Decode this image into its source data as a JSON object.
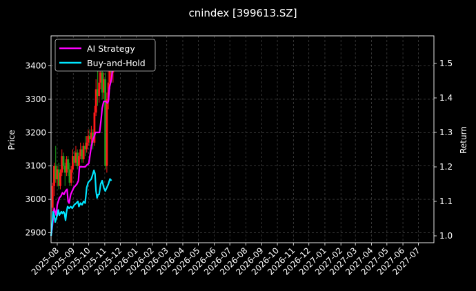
{
  "chart_data": {
    "type": "line",
    "title": "cnindex [399613.SZ]",
    "ylabel_left": "Price",
    "ylabel_right": "Return",
    "grid": true,
    "legend_position": "top-left",
    "background_color": "#000000",
    "x_tick_labels": [
      "2025-08",
      "2025-09",
      "2025-10",
      "2025-11",
      "2025-12",
      "2026-01",
      "2026-02",
      "2026-03",
      "2026-04",
      "2026-05",
      "2026-06",
      "2026-07",
      "2026-08",
      "2026-09",
      "2026-10",
      "2026-11",
      "2026-12",
      "2027-01",
      "2027-02",
      "2027-03",
      "2027-04",
      "2027-05",
      "2027-06",
      "2027-07"
    ],
    "x_range": [
      "2025-07-20",
      "2027-07-31"
    ],
    "left_axis": {
      "ylim": [
        2870,
        3490
      ],
      "ticks": [
        2900,
        3000,
        3100,
        3200,
        3300,
        3400
      ]
    },
    "right_axis": {
      "ylim": [
        0.98,
        1.58
      ],
      "ticks": [
        1.0,
        1.1,
        1.2,
        1.3,
        1.4,
        1.5
      ]
    },
    "series": [
      {
        "name": "AI Strategy",
        "axis": "right",
        "color": "#ff00ff",
        "points": [
          [
            "2025-07-20",
            1.0
          ],
          [
            "2025-07-22",
            1.02
          ],
          [
            "2025-07-24",
            1.05
          ],
          [
            "2025-07-26",
            1.08
          ],
          [
            "2025-07-28",
            1.07
          ],
          [
            "2025-07-30",
            1.06
          ],
          [
            "2025-08-01",
            1.09
          ],
          [
            "2025-08-03",
            1.1
          ],
          [
            "2025-08-05",
            1.11
          ],
          [
            "2025-08-08",
            1.115
          ],
          [
            "2025-08-11",
            1.125
          ],
          [
            "2025-08-14",
            1.12
          ],
          [
            "2025-08-17",
            1.13
          ],
          [
            "2025-08-20",
            1.135
          ],
          [
            "2025-08-22",
            1.1
          ],
          [
            "2025-08-24",
            1.095
          ],
          [
            "2025-08-27",
            1.12
          ],
          [
            "2025-08-30",
            1.13
          ],
          [
            "2025-09-02",
            1.14
          ],
          [
            "2025-09-05",
            1.145
          ],
          [
            "2025-09-08",
            1.15
          ],
          [
            "2025-09-11",
            1.16
          ],
          [
            "2025-09-13",
            1.2
          ],
          [
            "2025-09-16",
            1.2
          ],
          [
            "2025-09-20",
            1.2
          ],
          [
            "2025-09-24",
            1.2
          ],
          [
            "2025-09-27",
            1.205
          ],
          [
            "2025-10-01",
            1.21
          ],
          [
            "2025-10-03",
            1.23
          ],
          [
            "2025-10-06",
            1.26
          ],
          [
            "2025-10-09",
            1.28
          ],
          [
            "2025-10-12",
            1.29
          ],
          [
            "2025-10-14",
            1.3
          ],
          [
            "2025-10-18",
            1.3
          ],
          [
            "2025-10-22",
            1.3
          ],
          [
            "2025-10-25",
            1.34
          ],
          [
            "2025-10-27",
            1.37
          ],
          [
            "2025-10-30",
            1.39
          ],
          [
            "2025-11-03",
            1.39
          ],
          [
            "2025-11-06",
            1.385
          ],
          [
            "2025-11-08",
            1.39
          ],
          [
            "2025-11-10",
            1.43
          ],
          [
            "2025-11-14",
            1.455
          ],
          [
            "2025-11-17",
            1.5
          ],
          [
            "2025-11-20",
            1.53
          ],
          [
            "2025-11-23",
            1.56
          ]
        ]
      },
      {
        "name": "Buy-and-Hold",
        "axis": "right",
        "color": "#00e5ff",
        "points": [
          [
            "2025-07-20",
            1.0
          ],
          [
            "2025-07-22",
            1.03
          ],
          [
            "2025-07-24",
            1.07
          ],
          [
            "2025-07-26",
            1.06
          ],
          [
            "2025-07-28",
            1.04
          ],
          [
            "2025-07-30",
            1.05
          ],
          [
            "2025-08-01",
            1.06
          ],
          [
            "2025-08-03",
            1.075
          ],
          [
            "2025-08-05",
            1.06
          ],
          [
            "2025-08-07",
            1.065
          ],
          [
            "2025-08-09",
            1.07
          ],
          [
            "2025-08-11",
            1.065
          ],
          [
            "2025-08-13",
            1.07
          ],
          [
            "2025-08-15",
            1.065
          ],
          [
            "2025-08-17",
            1.045
          ],
          [
            "2025-08-19",
            1.07
          ],
          [
            "2025-08-21",
            1.085
          ],
          [
            "2025-08-24",
            1.08
          ],
          [
            "2025-08-27",
            1.085
          ],
          [
            "2025-08-30",
            1.08
          ],
          [
            "2025-09-03",
            1.09
          ],
          [
            "2025-09-07",
            1.095
          ],
          [
            "2025-09-10",
            1.1
          ],
          [
            "2025-09-12",
            1.085
          ],
          [
            "2025-09-15",
            1.095
          ],
          [
            "2025-09-18",
            1.09
          ],
          [
            "2025-09-21",
            1.1
          ],
          [
            "2025-09-24",
            1.095
          ],
          [
            "2025-09-27",
            1.14
          ],
          [
            "2025-09-30",
            1.155
          ],
          [
            "2025-10-03",
            1.16
          ],
          [
            "2025-10-06",
            1.165
          ],
          [
            "2025-10-09",
            1.18
          ],
          [
            "2025-10-11",
            1.19
          ],
          [
            "2025-10-13",
            1.18
          ],
          [
            "2025-10-15",
            1.13
          ],
          [
            "2025-10-17",
            1.11
          ],
          [
            "2025-10-19",
            1.12
          ],
          [
            "2025-10-21",
            1.12
          ],
          [
            "2025-10-24",
            1.15
          ],
          [
            "2025-10-27",
            1.16
          ],
          [
            "2025-10-30",
            1.14
          ],
          [
            "2025-11-02",
            1.13
          ],
          [
            "2025-11-05",
            1.14
          ],
          [
            "2025-11-08",
            1.15
          ],
          [
            "2025-11-11",
            1.165
          ],
          [
            "2025-11-14",
            1.16
          ]
        ]
      }
    ],
    "candles": [
      [
        "2025-07-23",
        2975,
        3040,
        2960,
        3050
      ],
      [
        "2025-07-26",
        3040,
        3100,
        3010,
        3110
      ],
      [
        "2025-07-29",
        3100,
        3060,
        3050,
        3160
      ],
      [
        "2025-08-01",
        3060,
        3090,
        3040,
        3100
      ],
      [
        "2025-08-04",
        3090,
        3040,
        3030,
        3110
      ],
      [
        "2025-08-07",
        3040,
        3080,
        3030,
        3090
      ],
      [
        "2025-08-10",
        3080,
        3130,
        3070,
        3150
      ],
      [
        "2025-08-13",
        3130,
        3100,
        3090,
        3140
      ],
      [
        "2025-08-16",
        3100,
        3080,
        3040,
        3110
      ],
      [
        "2025-08-19",
        3080,
        3120,
        3070,
        3130
      ],
      [
        "2025-08-22",
        3120,
        3090,
        3070,
        3130
      ],
      [
        "2025-08-25",
        3090,
        3050,
        3040,
        3110
      ],
      [
        "2025-08-28",
        3050,
        3090,
        3040,
        3100
      ],
      [
        "2025-08-31",
        3090,
        3130,
        3080,
        3150
      ],
      [
        "2025-09-03",
        3130,
        3110,
        3100,
        3145
      ],
      [
        "2025-09-06",
        3110,
        3140,
        3100,
        3160
      ],
      [
        "2025-09-09",
        3140,
        3100,
        3090,
        3150
      ],
      [
        "2025-09-12",
        3100,
        3130,
        3090,
        3140
      ],
      [
        "2025-09-15",
        3130,
        3150,
        3120,
        3170
      ],
      [
        "2025-09-18",
        3150,
        3120,
        3110,
        3160
      ],
      [
        "2025-09-21",
        3120,
        3160,
        3110,
        3170
      ],
      [
        "2025-09-24",
        3160,
        3150,
        3130,
        3190
      ],
      [
        "2025-09-27",
        3150,
        3170,
        3140,
        3190
      ],
      [
        "2025-09-30",
        3170,
        3190,
        3160,
        3210
      ],
      [
        "2025-10-03",
        3190,
        3180,
        3160,
        3210
      ],
      [
        "2025-10-06",
        3180,
        3200,
        3170,
        3220
      ],
      [
        "2025-10-09",
        3200,
        3170,
        3150,
        3210
      ],
      [
        "2025-10-12",
        3170,
        3260,
        3160,
        3280
      ],
      [
        "2025-10-15",
        3260,
        3330,
        3250,
        3360
      ],
      [
        "2025-10-18",
        3330,
        3310,
        3280,
        3390
      ],
      [
        "2025-10-21",
        3310,
        3350,
        3290,
        3420
      ],
      [
        "2025-10-24",
        3350,
        3380,
        3330,
        3440
      ],
      [
        "2025-10-27",
        3380,
        3320,
        3300,
        3400
      ],
      [
        "2025-10-30",
        3320,
        3360,
        3300,
        3380
      ],
      [
        "2025-11-02",
        3360,
        3100,
        3090,
        3380
      ],
      [
        "2025-11-05",
        3100,
        3300,
        3080,
        3320
      ],
      [
        "2025-11-08",
        3300,
        3350,
        3270,
        3390
      ],
      [
        "2025-11-11",
        3350,
        3400,
        3330,
        3430
      ],
      [
        "2025-11-14",
        3400,
        3380,
        3350,
        3440
      ],
      [
        "2025-11-17",
        3380,
        3420,
        3350,
        3450
      ]
    ]
  },
  "legend": {
    "items": [
      {
        "label": "AI Strategy",
        "color": "#ff00ff"
      },
      {
        "label": "Buy-and-Hold",
        "color": "#00e5ff"
      }
    ]
  },
  "colors": {
    "up_candle": "#ff1a1a",
    "down_candle": "#1aa01a",
    "grid": "#555555",
    "axes": "#ffffff"
  }
}
